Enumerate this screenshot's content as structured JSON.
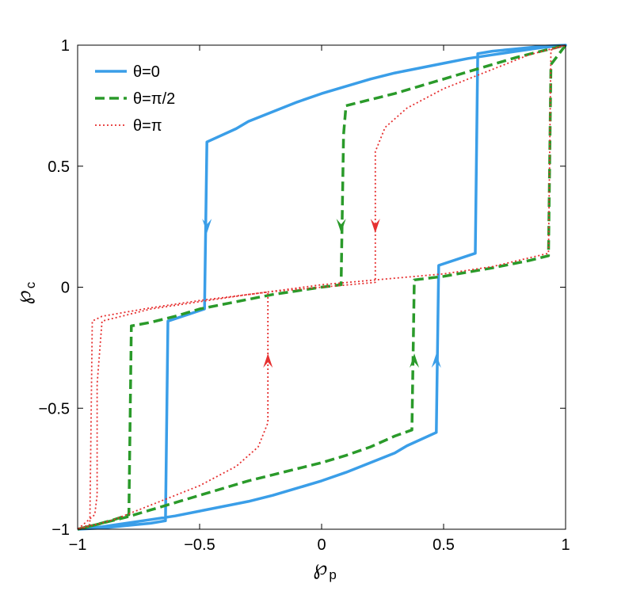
{
  "chart_data": {
    "type": "line",
    "title": "",
    "xlabel": "℘",
    "xlabel_sub": "p",
    "ylabel": "℘",
    "ylabel_sub": "c",
    "xlim": [
      -1,
      1
    ],
    "ylim": [
      -1,
      1
    ],
    "xticks": [
      -1,
      -0.5,
      0,
      0.5,
      1
    ],
    "yticks": [
      -1,
      -0.5,
      0,
      0.5,
      1
    ],
    "xtick_labels": [
      "−1",
      "−0.5",
      "0",
      "0.5",
      "1"
    ],
    "ytick_labels": [
      "−1",
      "−0.5",
      "0",
      "0.5",
      "1"
    ],
    "grid": false,
    "legend_position": "top-left",
    "series": [
      {
        "name": "θ=0",
        "color": "#3a9ee8",
        "dash": "solid",
        "points": [
          [
            -1,
            -1
          ],
          [
            -0.9,
            -0.99
          ],
          [
            -0.8,
            -0.975
          ],
          [
            -0.7,
            -0.96
          ],
          [
            -0.6,
            -0.945
          ],
          [
            -0.5,
            -0.925
          ],
          [
            -0.4,
            -0.905
          ],
          [
            -0.3,
            -0.885
          ],
          [
            -0.2,
            -0.86
          ],
          [
            -0.1,
            -0.83
          ],
          [
            0,
            -0.8
          ],
          [
            0.1,
            -0.765
          ],
          [
            0.2,
            -0.725
          ],
          [
            0.3,
            -0.685
          ],
          [
            0.35,
            -0.655
          ],
          [
            0.47,
            -0.6
          ],
          [
            0.48,
            0.09
          ],
          [
            0.63,
            0.14
          ],
          [
            0.64,
            0.965
          ],
          [
            0.7,
            0.975
          ],
          [
            0.8,
            0.985
          ],
          [
            0.9,
            0.995
          ],
          [
            1,
            1
          ],
          [
            0.9,
            0.99
          ],
          [
            0.8,
            0.975
          ],
          [
            0.7,
            0.96
          ],
          [
            0.6,
            0.945
          ],
          [
            0.5,
            0.925
          ],
          [
            0.4,
            0.905
          ],
          [
            0.3,
            0.885
          ],
          [
            0.2,
            0.86
          ],
          [
            0.1,
            0.83
          ],
          [
            0,
            0.8
          ],
          [
            -0.1,
            0.765
          ],
          [
            -0.2,
            0.725
          ],
          [
            -0.3,
            0.685
          ],
          [
            -0.35,
            0.655
          ],
          [
            -0.47,
            0.6
          ],
          [
            -0.48,
            -0.09
          ],
          [
            -0.63,
            -0.14
          ],
          [
            -0.64,
            -0.965
          ],
          [
            -0.7,
            -0.975
          ],
          [
            -0.8,
            -0.985
          ],
          [
            -0.9,
            -0.995
          ],
          [
            -1,
            -1
          ]
        ],
        "arrows": [
          [
            -0.47,
            0.25,
            "down"
          ],
          [
            0.47,
            -0.3,
            "up"
          ]
        ]
      },
      {
        "name": "θ=π/2",
        "color": "#2a9a2a",
        "dash": "dashed",
        "points": [
          [
            -1,
            -1
          ],
          [
            -0.9,
            -0.975
          ],
          [
            -0.8,
            -0.95
          ],
          [
            -0.7,
            -0.92
          ],
          [
            -0.6,
            -0.89
          ],
          [
            -0.5,
            -0.86
          ],
          [
            -0.4,
            -0.83
          ],
          [
            -0.3,
            -0.8
          ],
          [
            -0.2,
            -0.775
          ],
          [
            -0.1,
            -0.75
          ],
          [
            0,
            -0.725
          ],
          [
            0.1,
            -0.695
          ],
          [
            0.2,
            -0.66
          ],
          [
            0.3,
            -0.615
          ],
          [
            0.37,
            -0.59
          ],
          [
            0.38,
            0.03
          ],
          [
            0.5,
            0.045
          ],
          [
            0.7,
            0.08
          ],
          [
            0.85,
            0.11
          ],
          [
            0.93,
            0.13
          ],
          [
            0.94,
            0.92
          ],
          [
            0.97,
            0.96
          ],
          [
            1,
            1
          ],
          [
            0.9,
            0.975
          ],
          [
            0.8,
            0.95
          ],
          [
            0.7,
            0.92
          ],
          [
            0.6,
            0.89
          ],
          [
            0.5,
            0.86
          ],
          [
            0.4,
            0.83
          ],
          [
            0.3,
            0.8
          ],
          [
            0.2,
            0.775
          ],
          [
            0.1,
            0.75
          ],
          [
            0.09,
            0.63
          ],
          [
            0.08,
            0.01
          ],
          [
            0,
            0
          ],
          [
            -0.2,
            -0.03
          ],
          [
            -0.4,
            -0.07
          ],
          [
            -0.5,
            -0.09
          ],
          [
            -0.6,
            -0.12
          ],
          [
            -0.7,
            -0.145
          ],
          [
            -0.78,
            -0.16
          ],
          [
            -0.79,
            -0.94
          ],
          [
            -0.85,
            -0.96
          ],
          [
            -0.92,
            -0.98
          ],
          [
            -1,
            -1
          ]
        ],
        "arrows": [
          [
            0.08,
            0.25,
            "down"
          ],
          [
            0.38,
            -0.3,
            "up"
          ]
        ]
      },
      {
        "name": "θ=π",
        "color": "#e63030",
        "dash": "dotted",
        "points": [
          [
            -1,
            -1
          ],
          [
            -0.95,
            -0.98
          ],
          [
            -0.94,
            -0.14
          ],
          [
            -0.9,
            -0.12
          ],
          [
            -0.7,
            -0.085
          ],
          [
            -0.5,
            -0.055
          ],
          [
            -0.3,
            -0.03
          ],
          [
            -0.22,
            -0.02
          ],
          [
            -0.22,
            -0.56
          ],
          [
            -0.26,
            -0.66
          ],
          [
            -0.35,
            -0.74
          ],
          [
            -0.5,
            -0.82
          ],
          [
            -0.7,
            -0.9
          ],
          [
            -0.85,
            -0.96
          ],
          [
            -1,
            -1
          ],
          [
            -0.93,
            -0.94
          ],
          [
            -0.92,
            -0.86
          ],
          [
            -0.92,
            -0.4
          ],
          [
            -0.9,
            -0.14
          ],
          [
            -0.7,
            -0.09
          ],
          [
            -0.5,
            -0.06
          ],
          [
            -0.3,
            -0.03
          ],
          [
            0,
            0.01
          ],
          [
            0.22,
            0.03
          ],
          [
            0.5,
            0.055
          ],
          [
            0.7,
            0.085
          ],
          [
            0.93,
            0.14
          ],
          [
            0.94,
            0.98
          ],
          [
            1,
            1
          ],
          [
            0.85,
            0.96
          ],
          [
            0.7,
            0.9
          ],
          [
            0.5,
            0.82
          ],
          [
            0.35,
            0.74
          ],
          [
            0.26,
            0.66
          ],
          [
            0.22,
            0.56
          ],
          [
            0.22,
            0.02
          ],
          [
            0,
            0
          ],
          [
            -0.22,
            -0.02
          ]
        ],
        "arrows": [
          [
            0.22,
            0.25,
            "down"
          ],
          [
            -0.22,
            -0.3,
            "up"
          ]
        ]
      }
    ]
  }
}
